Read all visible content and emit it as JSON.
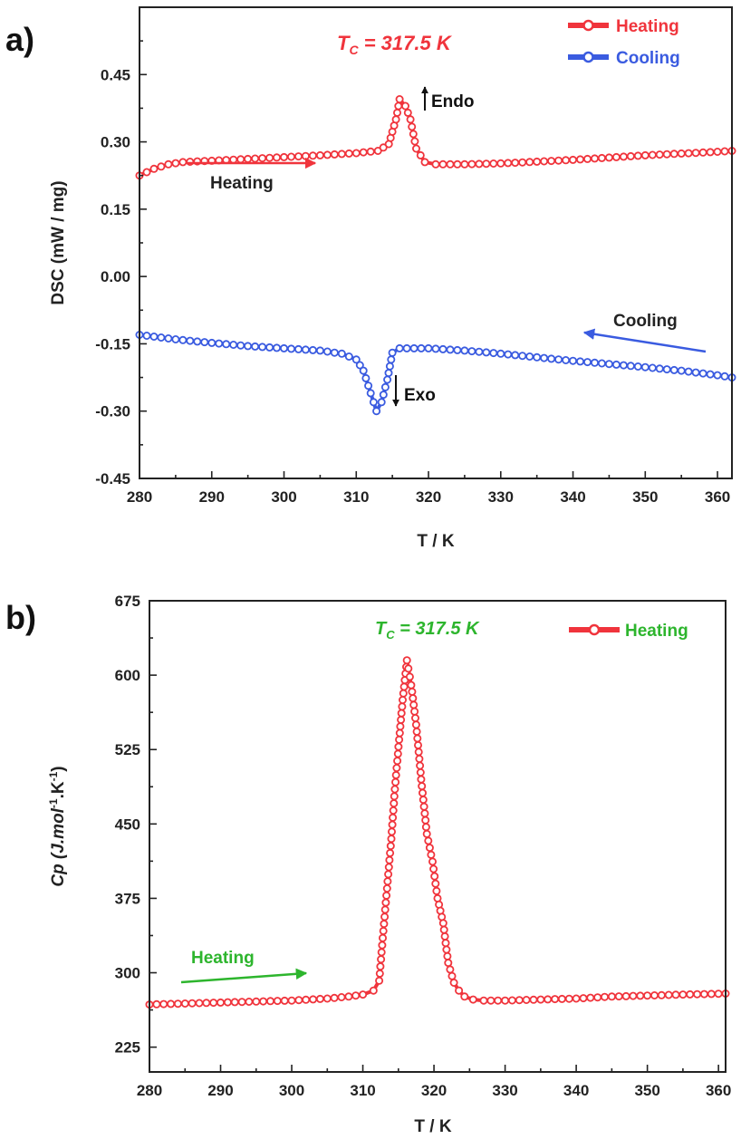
{
  "colors": {
    "heating": "#f0343c",
    "cooling": "#3a5be0",
    "green": "#2db52d",
    "axis": "#222222"
  },
  "chart_data": [
    {
      "panel_label": "a)",
      "type": "line",
      "xlabel": "T / K",
      "ylabel": "DSC (mW / mg)",
      "xlim": [
        280,
        362
      ],
      "ylim": [
        -0.45,
        0.6
      ],
      "xticks": [
        280,
        290,
        300,
        310,
        320,
        330,
        340,
        350,
        360
      ],
      "yticks": [
        -0.45,
        -0.3,
        -0.15,
        0.0,
        0.15,
        0.3,
        0.45
      ],
      "ytick_labels": [
        "-0.45",
        "-0.30",
        "-0.15",
        "0.00",
        "0.15",
        "0.30",
        "0.45"
      ],
      "legend_position": "top-right",
      "series": [
        {
          "name": "Heating",
          "color": "#f0343c",
          "points": [
            [
              280,
              0.225
            ],
            [
              282,
              0.24
            ],
            [
              284,
              0.25
            ],
            [
              286,
              0.255
            ],
            [
              290,
              0.258
            ],
            [
              295,
              0.262
            ],
            [
              300,
              0.266
            ],
            [
              305,
              0.27
            ],
            [
              310,
              0.275
            ],
            [
              313,
              0.28
            ],
            [
              314.5,
              0.295
            ],
            [
              315.5,
              0.35
            ],
            [
              316,
              0.395
            ],
            [
              316.8,
              0.38
            ],
            [
              317.5,
              0.35
            ],
            [
              318.3,
              0.285
            ],
            [
              319.5,
              0.255
            ],
            [
              321,
              0.25
            ],
            [
              325,
              0.25
            ],
            [
              330,
              0.252
            ],
            [
              335,
              0.256
            ],
            [
              340,
              0.26
            ],
            [
              345,
              0.265
            ],
            [
              350,
              0.27
            ],
            [
              355,
              0.274
            ],
            [
              360,
              0.278
            ],
            [
              362,
              0.28
            ]
          ]
        },
        {
          "name": "Cooling",
          "color": "#3a5be0",
          "points": [
            [
              280,
              -0.13
            ],
            [
              285,
              -0.14
            ],
            [
              290,
              -0.148
            ],
            [
              295,
              -0.155
            ],
            [
              300,
              -0.16
            ],
            [
              305,
              -0.165
            ],
            [
              308,
              -0.172
            ],
            [
              310,
              -0.185
            ],
            [
              311,
              -0.21
            ],
            [
              312,
              -0.26
            ],
            [
              312.8,
              -0.3
            ],
            [
              313.5,
              -0.28
            ],
            [
              314.3,
              -0.23
            ],
            [
              315,
              -0.17
            ],
            [
              316,
              -0.16
            ],
            [
              320,
              -0.16
            ],
            [
              325,
              -0.165
            ],
            [
              330,
              -0.172
            ],
            [
              335,
              -0.18
            ],
            [
              340,
              -0.188
            ],
            [
              345,
              -0.195
            ],
            [
              350,
              -0.202
            ],
            [
              355,
              -0.21
            ],
            [
              360,
              -0.22
            ],
            [
              362,
              -0.225
            ]
          ]
        }
      ],
      "annotations": {
        "tc_prefix": "T",
        "tc_sub": "C",
        "tc_value": " = 317.5 K",
        "endo": "Endo",
        "exo": "Exo",
        "heating_arrow": "Heating",
        "cooling_arrow": "Cooling"
      }
    },
    {
      "panel_label": "b)",
      "type": "line",
      "xlabel": "T / K",
      "ylabel_main": "Cp (J.mol",
      "ylabel_sup1": "-1",
      "ylabel_mid": ".K",
      "ylabel_sup2": "-1",
      "ylabel_end": ")",
      "xlim": [
        280,
        361
      ],
      "ylim": [
        200,
        675
      ],
      "xticks": [
        280,
        290,
        300,
        310,
        320,
        330,
        340,
        350,
        360
      ],
      "yticks": [
        225,
        300,
        375,
        450,
        525,
        600,
        675
      ],
      "legend_position": "top-right",
      "series": [
        {
          "name": "Heating",
          "color": "#f0343c",
          "points": [
            [
              280,
              268
            ],
            [
              285,
              269
            ],
            [
              290,
              270
            ],
            [
              295,
              271
            ],
            [
              300,
              272
            ],
            [
              305,
              274
            ],
            [
              308,
              276
            ],
            [
              310,
              278
            ],
            [
              311.5,
              282
            ],
            [
              312.3,
              292
            ],
            [
              312.8,
              335
            ],
            [
              313.4,
              385
            ],
            [
              314,
              435
            ],
            [
              314.5,
              485
            ],
            [
              315.1,
              535
            ],
            [
              315.6,
              575
            ],
            [
              316.2,
              615
            ],
            [
              316.8,
              590
            ],
            [
              317.5,
              550
            ],
            [
              318.2,
              495
            ],
            [
              319,
              440
            ],
            [
              319.8,
              412
            ],
            [
              320.5,
              375
            ],
            [
              321.3,
              350
            ],
            [
              322,
              310
            ],
            [
              322.8,
              290
            ],
            [
              323.5,
              282
            ],
            [
              324.3,
              276
            ],
            [
              325.5,
              273
            ],
            [
              327,
              272
            ],
            [
              330,
              272
            ],
            [
              335,
              273
            ],
            [
              340,
              274
            ],
            [
              345,
              276
            ],
            [
              350,
              277
            ],
            [
              355,
              278
            ],
            [
              361,
              279
            ]
          ]
        }
      ],
      "annotations": {
        "tc_prefix": "T",
        "tc_sub": "C",
        "tc_value": " = 317.5 K",
        "heating_arrow": "Heating"
      }
    }
  ]
}
